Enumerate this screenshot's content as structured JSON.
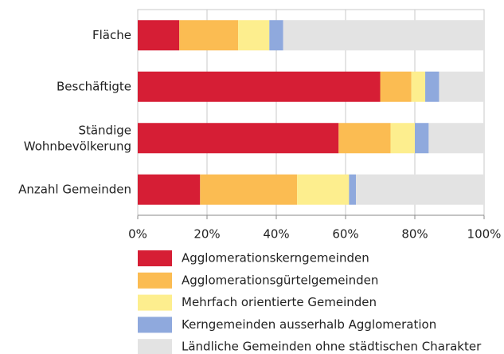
{
  "chart_data": {
    "type": "stacked-bar-horizontal",
    "categories": [
      "Fläche",
      "Beschäftigte",
      "Ständige\nWohnbevölkerung",
      "Anzahl Gemeinden"
    ],
    "series": [
      {
        "name": "Agglomerationskerngemeinden",
        "color": "#d61e35",
        "values": [
          12,
          70,
          58,
          18
        ]
      },
      {
        "name": "Agglomerationsgürtelgemeinden",
        "color": "#fbbc52",
        "values": [
          17,
          9,
          15,
          28
        ]
      },
      {
        "name": "Mehrfach orientierte Gemeinden",
        "color": "#fdee8e",
        "values": [
          9,
          4,
          7,
          15
        ]
      },
      {
        "name": "Kerngemeinden ausserhalb Agglomeration",
        "color": "#8fa9dd",
        "values": [
          4,
          4,
          4,
          2
        ]
      },
      {
        "name": "Ländliche Gemeinden ohne städtischen Charakter",
        "color": "#e3e3e3",
        "values": [
          58,
          13,
          16,
          37
        ]
      }
    ],
    "xlim": [
      0,
      100
    ],
    "xticks": [
      {
        "value": 0,
        "label": "0%"
      },
      {
        "value": 20,
        "label": "20%"
      },
      {
        "value": 40,
        "label": "40%"
      },
      {
        "value": 60,
        "label": "60%"
      },
      {
        "value": 80,
        "label": "80%"
      },
      {
        "value": 100,
        "label": "100%"
      }
    ],
    "grid": true
  }
}
